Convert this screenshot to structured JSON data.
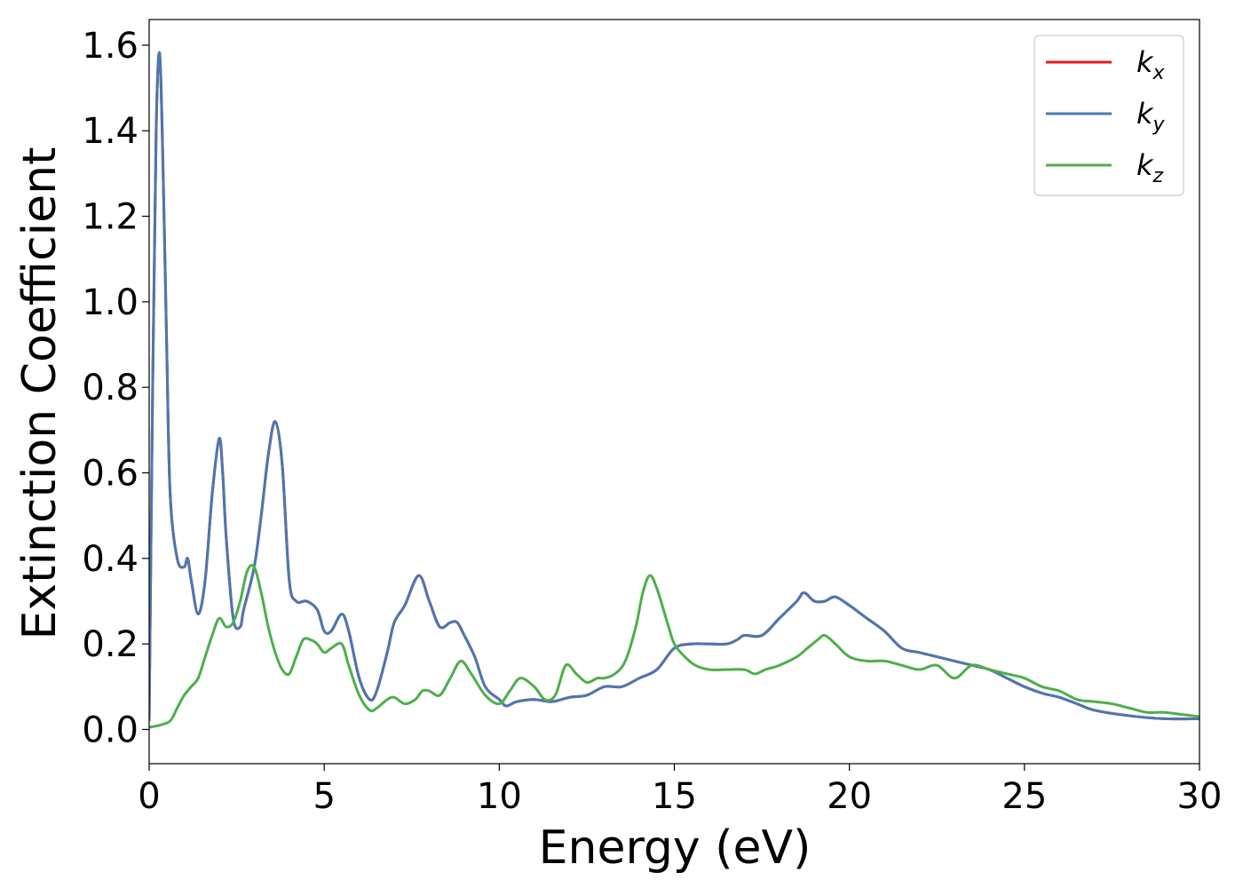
{
  "chart_data": {
    "type": "line",
    "title": "",
    "xlabel": "Energy (eV)",
    "ylabel": "Extinction Coefficient",
    "xlim": [
      0,
      30
    ],
    "ylim": [
      -0.08,
      1.66
    ],
    "xticks": [
      0,
      5,
      10,
      15,
      20,
      25,
      30
    ],
    "yticks": [
      0.0,
      0.2,
      0.4,
      0.6,
      0.8,
      1.0,
      1.2,
      1.4,
      1.6
    ],
    "xtick_labels": [
      "0",
      "5",
      "10",
      "15",
      "20",
      "25",
      "30"
    ],
    "ytick_labels": [
      "0.0",
      "0.2",
      "0.4",
      "0.6",
      "0.8",
      "1.0",
      "1.2",
      "1.4",
      "1.6"
    ],
    "grid": false,
    "legend_position": "top-right",
    "series": [
      {
        "name": "k_x",
        "legend_main": "k",
        "legend_sub": "x",
        "color": "#e41a1c",
        "x": [
          0,
          0.1,
          0.2,
          0.3,
          0.4,
          0.5,
          0.6,
          0.8,
          1.0,
          1.1,
          1.2,
          1.4,
          1.6,
          1.8,
          2.0,
          2.1,
          2.2,
          2.4,
          2.6,
          2.7,
          3.0,
          3.2,
          3.4,
          3.6,
          3.8,
          4.0,
          4.2,
          4.5,
          4.8,
          5.0,
          5.2,
          5.5,
          5.7,
          6.0,
          6.3,
          6.5,
          6.8,
          7.0,
          7.3,
          7.7,
          8.0,
          8.3,
          8.6,
          8.8,
          9.0,
          9.3,
          9.6,
          10.0,
          10.2,
          10.5,
          11.0,
          11.5,
          12.0,
          12.5,
          13.0,
          13.5,
          14.0,
          14.5,
          15.0,
          15.5,
          16.0,
          16.5,
          16.8,
          17.0,
          17.5,
          18.0,
          18.5,
          18.7,
          19.0,
          19.3,
          19.6,
          20.0,
          20.5,
          21.0,
          21.5,
          22.0,
          22.5,
          23.0,
          23.5,
          24.0,
          24.5,
          25.0,
          25.5,
          26.0,
          26.5,
          27.0,
          28.0,
          29.0,
          30.0
        ],
        "y": [
          0.02,
          0.8,
          1.4,
          1.58,
          1.3,
          0.9,
          0.55,
          0.4,
          0.38,
          0.4,
          0.35,
          0.27,
          0.35,
          0.55,
          0.68,
          0.6,
          0.45,
          0.26,
          0.24,
          0.28,
          0.38,
          0.5,
          0.64,
          0.72,
          0.62,
          0.35,
          0.3,
          0.3,
          0.28,
          0.23,
          0.23,
          0.27,
          0.23,
          0.12,
          0.07,
          0.09,
          0.18,
          0.25,
          0.29,
          0.36,
          0.3,
          0.24,
          0.25,
          0.25,
          0.22,
          0.17,
          0.1,
          0.07,
          0.055,
          0.065,
          0.07,
          0.065,
          0.075,
          0.08,
          0.1,
          0.1,
          0.12,
          0.14,
          0.19,
          0.2,
          0.2,
          0.2,
          0.21,
          0.22,
          0.22,
          0.26,
          0.3,
          0.32,
          0.3,
          0.3,
          0.31,
          0.29,
          0.26,
          0.23,
          0.19,
          0.18,
          0.17,
          0.16,
          0.15,
          0.14,
          0.12,
          0.1,
          0.085,
          0.075,
          0.06,
          0.045,
          0.032,
          0.025,
          0.025
        ]
      },
      {
        "name": "k_y",
        "legend_main": "k",
        "legend_sub": "y",
        "color": "#4a78b0",
        "x": [
          0,
          0.1,
          0.2,
          0.3,
          0.4,
          0.5,
          0.6,
          0.8,
          1.0,
          1.1,
          1.2,
          1.4,
          1.6,
          1.8,
          2.0,
          2.1,
          2.2,
          2.4,
          2.6,
          2.7,
          3.0,
          3.2,
          3.4,
          3.6,
          3.8,
          4.0,
          4.2,
          4.5,
          4.8,
          5.0,
          5.2,
          5.5,
          5.7,
          6.0,
          6.3,
          6.5,
          6.8,
          7.0,
          7.3,
          7.7,
          8.0,
          8.3,
          8.6,
          8.8,
          9.0,
          9.3,
          9.6,
          10.0,
          10.2,
          10.5,
          11.0,
          11.5,
          12.0,
          12.5,
          13.0,
          13.5,
          14.0,
          14.5,
          15.0,
          15.5,
          16.0,
          16.5,
          16.8,
          17.0,
          17.5,
          18.0,
          18.5,
          18.7,
          19.0,
          19.3,
          19.6,
          20.0,
          20.5,
          21.0,
          21.5,
          22.0,
          22.5,
          23.0,
          23.5,
          24.0,
          24.5,
          25.0,
          25.5,
          26.0,
          26.5,
          27.0,
          28.0,
          29.0,
          30.0
        ],
        "y": [
          0.02,
          0.8,
          1.4,
          1.58,
          1.3,
          0.9,
          0.55,
          0.4,
          0.38,
          0.4,
          0.35,
          0.27,
          0.35,
          0.55,
          0.68,
          0.6,
          0.45,
          0.26,
          0.24,
          0.28,
          0.38,
          0.5,
          0.64,
          0.72,
          0.62,
          0.35,
          0.3,
          0.3,
          0.28,
          0.23,
          0.23,
          0.27,
          0.23,
          0.12,
          0.07,
          0.09,
          0.18,
          0.25,
          0.29,
          0.36,
          0.3,
          0.24,
          0.25,
          0.25,
          0.22,
          0.17,
          0.1,
          0.07,
          0.055,
          0.065,
          0.07,
          0.065,
          0.075,
          0.08,
          0.1,
          0.1,
          0.12,
          0.14,
          0.19,
          0.2,
          0.2,
          0.2,
          0.21,
          0.22,
          0.22,
          0.26,
          0.3,
          0.32,
          0.3,
          0.3,
          0.31,
          0.29,
          0.26,
          0.23,
          0.19,
          0.18,
          0.17,
          0.16,
          0.15,
          0.14,
          0.12,
          0.1,
          0.085,
          0.075,
          0.06,
          0.045,
          0.032,
          0.025,
          0.025
        ]
      },
      {
        "name": "k_z",
        "legend_main": "k",
        "legend_sub": "z",
        "color": "#4daf4a",
        "x": [
          0,
          0.3,
          0.6,
          0.8,
          1.0,
          1.2,
          1.4,
          1.6,
          1.8,
          2.0,
          2.2,
          2.4,
          2.6,
          2.8,
          3.0,
          3.2,
          3.4,
          3.6,
          3.8,
          4.0,
          4.2,
          4.4,
          4.6,
          4.8,
          5.0,
          5.2,
          5.5,
          5.7,
          6.0,
          6.3,
          6.5,
          6.8,
          7.0,
          7.3,
          7.6,
          7.8,
          8.0,
          8.3,
          8.6,
          8.9,
          9.2,
          9.6,
          10.0,
          10.3,
          10.6,
          11.0,
          11.3,
          11.6,
          11.9,
          12.2,
          12.5,
          12.8,
          13.0,
          13.3,
          13.6,
          13.9,
          14.1,
          14.3,
          14.5,
          14.8,
          15.0,
          15.3,
          15.6,
          16.0,
          16.5,
          17.0,
          17.3,
          17.6,
          18.0,
          18.5,
          18.8,
          19.1,
          19.3,
          19.6,
          20.0,
          20.5,
          21.0,
          21.5,
          22.0,
          22.5,
          23.0,
          23.5,
          24.0,
          24.5,
          25.0,
          25.5,
          26.0,
          26.5,
          27.0,
          27.5,
          28.0,
          28.5,
          29.0,
          29.5,
          30.0
        ],
        "y": [
          0.005,
          0.01,
          0.02,
          0.05,
          0.08,
          0.1,
          0.12,
          0.17,
          0.22,
          0.26,
          0.24,
          0.25,
          0.3,
          0.37,
          0.38,
          0.32,
          0.24,
          0.18,
          0.14,
          0.13,
          0.17,
          0.21,
          0.21,
          0.2,
          0.18,
          0.19,
          0.2,
          0.15,
          0.08,
          0.045,
          0.05,
          0.07,
          0.075,
          0.06,
          0.07,
          0.09,
          0.09,
          0.08,
          0.12,
          0.16,
          0.13,
          0.08,
          0.06,
          0.09,
          0.12,
          0.1,
          0.07,
          0.08,
          0.15,
          0.13,
          0.11,
          0.12,
          0.12,
          0.13,
          0.16,
          0.24,
          0.32,
          0.36,
          0.33,
          0.25,
          0.2,
          0.17,
          0.15,
          0.14,
          0.14,
          0.14,
          0.13,
          0.14,
          0.15,
          0.17,
          0.19,
          0.21,
          0.22,
          0.2,
          0.17,
          0.16,
          0.16,
          0.15,
          0.14,
          0.15,
          0.12,
          0.15,
          0.14,
          0.13,
          0.12,
          0.1,
          0.09,
          0.07,
          0.065,
          0.06,
          0.05,
          0.04,
          0.04,
          0.035,
          0.03
        ]
      }
    ]
  }
}
